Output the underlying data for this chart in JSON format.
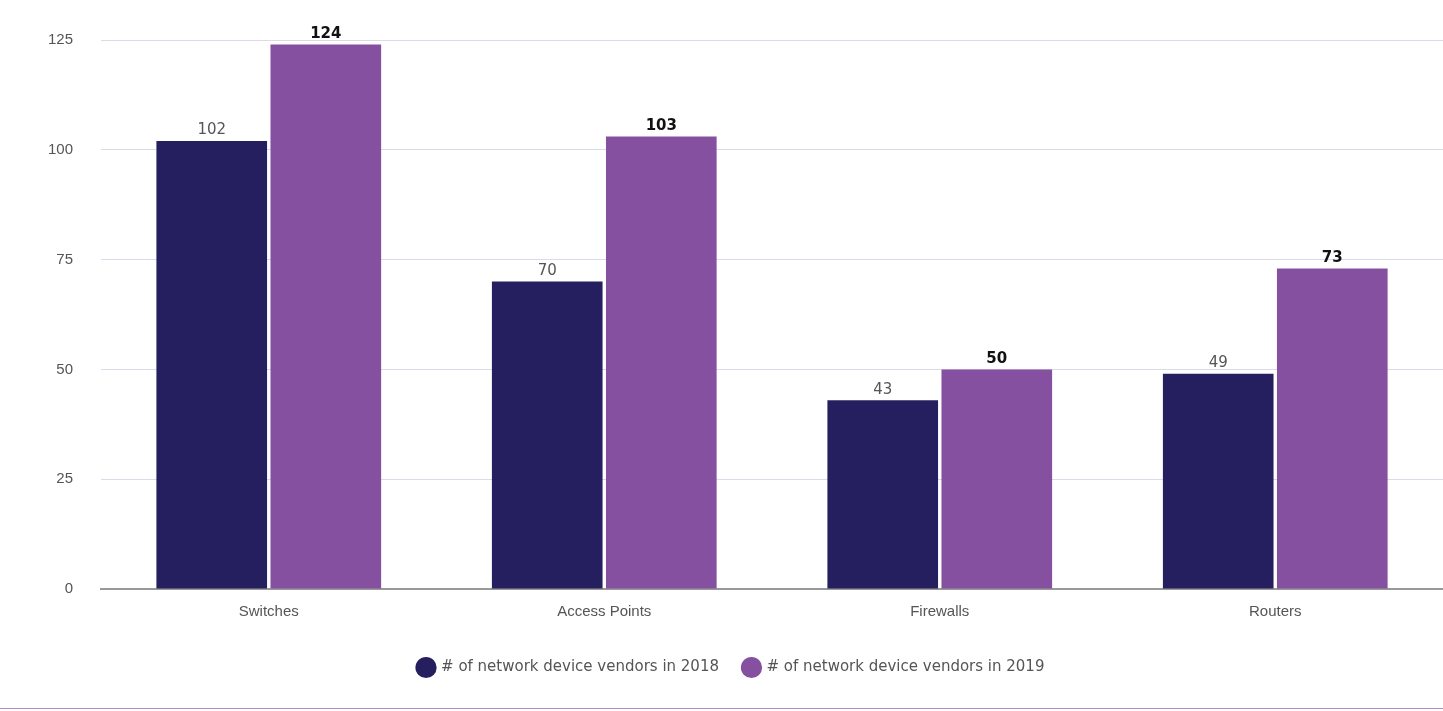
{
  "chart_data": {
    "type": "bar",
    "categories": [
      "Switches",
      "Access Points",
      "Firewalls",
      "Routers"
    ],
    "series": [
      {
        "name": "# of network device vendors in 2018",
        "color": "#251f5f",
        "values": [
          102,
          70,
          43,
          49
        ]
      },
      {
        "name": "# of network device vendors in 2019",
        "color": "#8650a0",
        "values": [
          124,
          103,
          50,
          73
        ]
      }
    ],
    "ylim": [
      0,
      125
    ],
    "yticks": [
      0,
      25,
      50,
      75,
      100,
      125
    ],
    "grid": "y",
    "legend": "bottom",
    "data_labels": true
  }
}
